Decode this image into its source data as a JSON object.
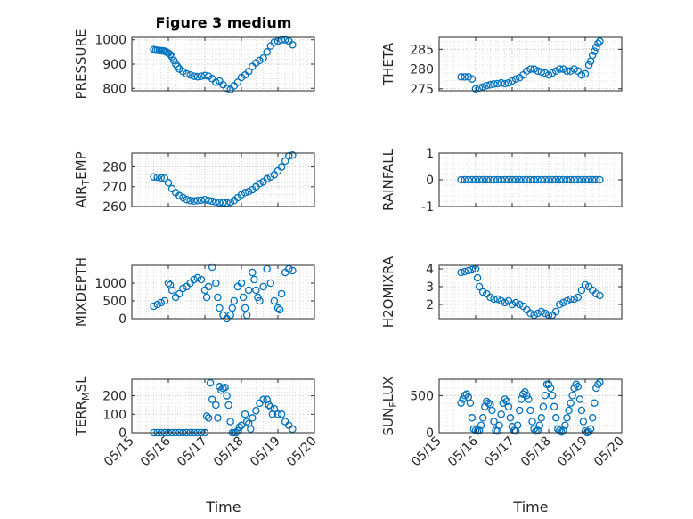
{
  "figure": {
    "title": "Figure 3 medium",
    "xlabel": "Time",
    "x_ticks": [
      "05/15",
      "05/16",
      "05/17",
      "05/18",
      "05/19",
      "05/20"
    ]
  },
  "style": {
    "marker_color": "#0072BD",
    "axis_color": "#262626",
    "grid_color": "#d9d9d9"
  },
  "chart_data": [
    {
      "type": "scatter",
      "id": "pressure",
      "ylabel": "PRESSURE",
      "xlim": [
        15,
        20
      ],
      "ylim": [
        790,
        1010
      ],
      "yticks": [
        800,
        900,
        1000
      ],
      "grid": true,
      "x": [
        15.6,
        15.65,
        15.7,
        15.75,
        15.8,
        15.85,
        15.9,
        15.95,
        16.0,
        16.05,
        16.1,
        16.15,
        16.2,
        16.25,
        16.3,
        16.4,
        16.5,
        16.6,
        16.7,
        16.8,
        16.9,
        17.0,
        17.1,
        17.2,
        17.3,
        17.4,
        17.5,
        17.6,
        17.7,
        17.8,
        17.9,
        18.0,
        18.1,
        18.2,
        18.3,
        18.4,
        18.5,
        18.6,
        18.7,
        18.8,
        18.9,
        19.0,
        19.1,
        19.2,
        19.3,
        19.4
      ],
      "y": [
        960,
        958,
        957,
        956,
        955,
        955,
        953,
        950,
        945,
        940,
        930,
        915,
        900,
        890,
        880,
        870,
        860,
        855,
        850,
        848,
        850,
        853,
        850,
        840,
        825,
        830,
        815,
        800,
        795,
        810,
        825,
        845,
        855,
        870,
        890,
        905,
        915,
        925,
        950,
        975,
        990,
        995,
        1000,
        1000,
        995,
        980
      ]
    },
    {
      "type": "scatter",
      "id": "theta",
      "ylabel": "THETA",
      "xlim": [
        15,
        20
      ],
      "ylim": [
        274.5,
        288
      ],
      "yticks": [
        275,
        280,
        285
      ],
      "grid": true,
      "x": [
        15.6,
        15.7,
        15.8,
        15.9,
        16.0,
        16.1,
        16.2,
        16.3,
        16.4,
        16.5,
        16.6,
        16.7,
        16.8,
        16.9,
        17.0,
        17.1,
        17.2,
        17.3,
        17.4,
        17.5,
        17.6,
        17.7,
        17.8,
        17.9,
        18.0,
        18.1,
        18.2,
        18.3,
        18.4,
        18.5,
        18.6,
        18.7,
        18.8,
        18.9,
        19.0,
        19.1,
        19.15,
        19.2,
        19.25,
        19.3,
        19.35,
        19.4
      ],
      "y": [
        278,
        278,
        278,
        277.5,
        275,
        275.2,
        275.5,
        275.8,
        276,
        276.2,
        276.3,
        276.5,
        276.3,
        276.5,
        277,
        277.5,
        277.8,
        278.5,
        279.5,
        280,
        280,
        279.5,
        279.3,
        279,
        278.5,
        279,
        279.5,
        280,
        280,
        279.5,
        279.5,
        280,
        279.5,
        278.5,
        278.8,
        281,
        282,
        283.5,
        284.5,
        285.5,
        286.5,
        287
      ]
    },
    {
      "type": "scatter",
      "id": "air_temp",
      "ylabel": "AIR_TEMP",
      "xlim": [
        15,
        20
      ],
      "ylim": [
        260,
        287
      ],
      "yticks": [
        260,
        270,
        280
      ],
      "grid": true,
      "x": [
        15.6,
        15.7,
        15.8,
        15.9,
        16.0,
        16.1,
        16.2,
        16.3,
        16.4,
        16.5,
        16.6,
        16.7,
        16.8,
        16.9,
        17.0,
        17.1,
        17.2,
        17.3,
        17.4,
        17.5,
        17.6,
        17.7,
        17.8,
        17.9,
        18.0,
        18.1,
        18.2,
        18.3,
        18.4,
        18.5,
        18.6,
        18.7,
        18.8,
        18.9,
        19.0,
        19.1,
        19.2,
        19.3,
        19.4
      ],
      "y": [
        275,
        274.8,
        274.5,
        274.3,
        272,
        269,
        267,
        265.5,
        264.5,
        263.5,
        263,
        262.8,
        263,
        263.2,
        263.5,
        263,
        262.7,
        262.3,
        262,
        262,
        261.8,
        262.2,
        263,
        264.5,
        266,
        267,
        267.5,
        268.5,
        270,
        271.5,
        272.5,
        274,
        275,
        276,
        278,
        280,
        283,
        285.5,
        286
      ]
    },
    {
      "type": "scatter",
      "id": "rainfall",
      "ylabel": "RAINFALL",
      "xlim": [
        15,
        20
      ],
      "ylim": [
        -1,
        1
      ],
      "yticks": [
        -1,
        0,
        1
      ],
      "grid": true,
      "x": [
        15.6,
        15.7,
        15.8,
        15.9,
        16.0,
        16.1,
        16.2,
        16.3,
        16.4,
        16.5,
        16.6,
        16.7,
        16.8,
        16.9,
        17.0,
        17.1,
        17.2,
        17.3,
        17.4,
        17.5,
        17.6,
        17.7,
        17.8,
        17.9,
        18.0,
        18.1,
        18.2,
        18.3,
        18.4,
        18.5,
        18.6,
        18.7,
        18.8,
        18.9,
        19.0,
        19.1,
        19.2,
        19.3,
        19.4
      ],
      "y": [
        0,
        0,
        0,
        0,
        0,
        0,
        0,
        0,
        0,
        0,
        0,
        0,
        0,
        0,
        0,
        0,
        0,
        0,
        0,
        0,
        0,
        0,
        0,
        0,
        0,
        0,
        0,
        0,
        0,
        0,
        0,
        0,
        0,
        0,
        0,
        0,
        0,
        0,
        0
      ]
    },
    {
      "type": "scatter",
      "id": "mixdepth",
      "ylabel": "MIXDEPTH",
      "xlim": [
        15,
        20
      ],
      "ylim": [
        0,
        1500
      ],
      "yticks": [
        0,
        500,
        1000
      ],
      "grid": true,
      "x": [
        15.6,
        15.7,
        15.8,
        15.9,
        16.0,
        16.05,
        16.1,
        16.2,
        16.3,
        16.4,
        16.5,
        16.6,
        16.7,
        16.8,
        16.9,
        17.0,
        17.05,
        17.1,
        17.2,
        17.3,
        17.35,
        17.4,
        17.5,
        17.6,
        17.7,
        17.75,
        17.8,
        17.9,
        18.0,
        18.05,
        18.1,
        18.15,
        18.2,
        18.3,
        18.35,
        18.4,
        18.45,
        18.5,
        18.6,
        18.7,
        18.8,
        18.9,
        19.0,
        19.05,
        19.1,
        19.2,
        19.3,
        19.4
      ],
      "y": [
        350,
        400,
        450,
        500,
        1000,
        950,
        800,
        600,
        700,
        850,
        900,
        1000,
        1100,
        1150,
        1100,
        800,
        600,
        900,
        1450,
        1000,
        600,
        300,
        100,
        0,
        100,
        300,
        500,
        900,
        1000,
        600,
        300,
        100,
        800,
        1300,
        1100,
        800,
        600,
        500,
        900,
        1400,
        1000,
        500,
        300,
        250,
        700,
        1300,
        1400,
        1350
      ]
    },
    {
      "type": "scatter",
      "id": "h2omixra",
      "ylabel": "H2OMIXRA",
      "xlim": [
        15,
        20
      ],
      "ylim": [
        1.2,
        4.2
      ],
      "yticks": [
        2,
        3,
        4
      ],
      "grid": true,
      "x": [
        15.6,
        15.7,
        15.8,
        15.9,
        16.0,
        16.05,
        16.1,
        16.2,
        16.3,
        16.4,
        16.5,
        16.6,
        16.7,
        16.8,
        16.9,
        17.0,
        17.1,
        17.2,
        17.3,
        17.4,
        17.5,
        17.6,
        17.7,
        17.8,
        17.9,
        18.0,
        18.1,
        18.2,
        18.3,
        18.4,
        18.5,
        18.6,
        18.7,
        18.8,
        18.9,
        19.0,
        19.1,
        19.2,
        19.3,
        19.4
      ],
      "y": [
        3.8,
        3.85,
        3.9,
        3.95,
        4.0,
        3.5,
        3.0,
        2.7,
        2.6,
        2.4,
        2.3,
        2.3,
        2.2,
        2.1,
        2.2,
        2.0,
        2.1,
        2.0,
        1.9,
        1.7,
        1.5,
        1.4,
        1.5,
        1.6,
        1.5,
        1.4,
        1.4,
        1.6,
        2.0,
        2.1,
        2.2,
        2.3,
        2.3,
        2.4,
        2.8,
        3.1,
        3.0,
        2.8,
        2.6,
        2.5
      ]
    },
    {
      "type": "scatter",
      "id": "terr_msl",
      "ylabel": "TERR_MSL",
      "xlim": [
        15,
        20
      ],
      "ylim": [
        0,
        290
      ],
      "yticks": [
        0,
        100,
        200
      ],
      "grid": true,
      "x": [
        15.6,
        15.7,
        15.8,
        15.9,
        16.0,
        16.1,
        16.2,
        16.3,
        16.4,
        16.5,
        16.6,
        16.7,
        16.8,
        16.9,
        17.0,
        17.05,
        17.1,
        17.15,
        17.2,
        17.3,
        17.35,
        17.4,
        17.45,
        17.5,
        17.55,
        17.6,
        17.65,
        17.7,
        17.75,
        17.8,
        17.85,
        17.9,
        17.95,
        18.0,
        18.1,
        18.15,
        18.2,
        18.25,
        18.3,
        18.4,
        18.5,
        18.6,
        18.7,
        18.75,
        18.8,
        18.85,
        18.9,
        19.0,
        19.1,
        19.2,
        19.3,
        19.4
      ],
      "y": [
        0,
        0,
        0,
        0,
        0,
        0,
        0,
        0,
        0,
        0,
        0,
        0,
        0,
        0,
        0,
        90,
        80,
        270,
        180,
        150,
        80,
        250,
        230,
        240,
        245,
        200,
        150,
        60,
        0,
        0,
        0,
        10,
        30,
        40,
        100,
        60,
        50,
        20,
        80,
        120,
        160,
        180,
        180,
        150,
        140,
        100,
        130,
        100,
        100,
        60,
        40,
        20
      ]
    },
    {
      "type": "scatter",
      "id": "sun_flux",
      "ylabel": "SUN_FLUX",
      "xlim": [
        15,
        20
      ],
      "ylim": [
        0,
        720
      ],
      "yticks": [
        0,
        500
      ],
      "grid": true,
      "x": [
        15.6,
        15.65,
        15.7,
        15.75,
        15.8,
        15.85,
        15.9,
        15.95,
        16.0,
        16.05,
        16.1,
        16.15,
        16.2,
        16.25,
        16.3,
        16.35,
        16.4,
        16.45,
        16.5,
        16.55,
        16.6,
        16.65,
        16.7,
        16.75,
        16.8,
        16.85,
        16.9,
        16.95,
        17.0,
        17.05,
        17.1,
        17.15,
        17.2,
        17.25,
        17.3,
        17.35,
        17.4,
        17.45,
        17.5,
        17.55,
        17.6,
        17.65,
        17.7,
        17.75,
        17.8,
        17.85,
        17.9,
        17.95,
        18.0,
        18.05,
        18.1,
        18.15,
        18.2,
        18.25,
        18.3,
        18.35,
        18.4,
        18.45,
        18.5,
        18.55,
        18.6,
        18.65,
        18.7,
        18.75,
        18.8,
        18.85,
        18.9,
        18.95,
        19.0,
        19.05,
        19.1,
        19.15,
        19.2,
        19.25,
        19.3,
        19.35,
        19.4
      ],
      "y": [
        400,
        450,
        500,
        520,
        480,
        400,
        200,
        50,
        30,
        20,
        30,
        100,
        200,
        350,
        420,
        400,
        380,
        300,
        150,
        30,
        20,
        100,
        250,
        400,
        450,
        420,
        350,
        200,
        80,
        30,
        20,
        100,
        300,
        450,
        520,
        550,
        500,
        450,
        300,
        150,
        50,
        20,
        30,
        100,
        200,
        350,
        500,
        650,
        650,
        600,
        500,
        350,
        200,
        50,
        30,
        10,
        30,
        100,
        200,
        300,
        400,
        500,
        600,
        650,
        620,
        450,
        300,
        150,
        20,
        0,
        10,
        50,
        200,
        400,
        600,
        650,
        680
      ]
    }
  ]
}
